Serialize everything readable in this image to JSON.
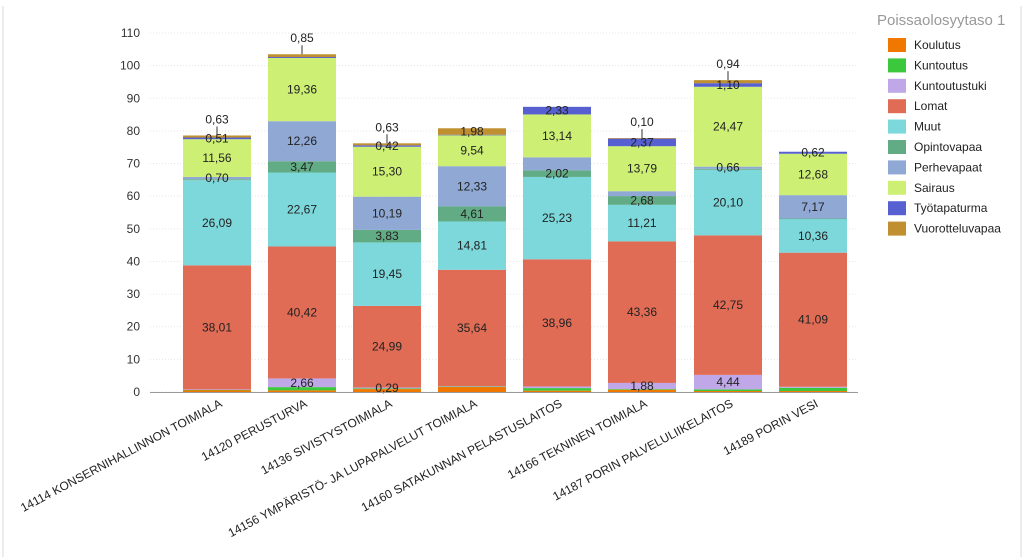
{
  "chart_data": {
    "type": "bar",
    "stacked": true,
    "categories": [
      "14114  KONSERNIHALLINNON TOIMIALA",
      "14120  PERUSTURVA",
      "14136  SIVISTYSTOIMIALA",
      "14156  YMPÄRISTÖ- JA LUPAPALVELUT TOIMIALA",
      "14160  SATAKUNNAN PELASTUSLAITOS",
      "14166  TEKNINEN TOIMIALA",
      "14187  PORIN PALVELULIIKELAITOS",
      "14189  PORIN VESI"
    ],
    "ylim": [
      0,
      110
    ],
    "yticks": [
      "0",
      "10",
      "20",
      "30",
      "40",
      "50",
      "60",
      "70",
      "80",
      "90",
      "100",
      "110"
    ],
    "grid": true,
    "legend_position": "right",
    "legend_title": "Poissaolosyytaso 1",
    "series": [
      {
        "name": "Koulutus",
        "color": "#F07800",
        "values": [
          0.6,
          0.5,
          0.9,
          1.6,
          0.4,
          0.7,
          0.3,
          0.3
        ],
        "labels": [
          "",
          "",
          "",
          "",
          "",
          "",
          "",
          ""
        ]
      },
      {
        "name": "Kuntoutus",
        "color": "#3CC83C",
        "values": [
          0.1,
          1.0,
          0.2,
          0.1,
          0.8,
          0.2,
          0.5,
          1.0
        ],
        "labels": [
          "",
          "",
          "",
          "",
          "",
          "",
          "",
          ""
        ]
      },
      {
        "name": "Kuntoutustuki",
        "color": "#C0A8E8",
        "values": [
          0.1,
          2.66,
          0.29,
          0.1,
          0.5,
          1.88,
          4.44,
          0.3
        ],
        "labels": [
          "",
          "2,66",
          "0,29",
          "",
          "",
          "1,88",
          "4,44",
          ""
        ]
      },
      {
        "name": "Lomat",
        "color": "#E06C55",
        "values": [
          38.01,
          40.42,
          24.99,
          35.64,
          38.96,
          43.36,
          42.75,
          41.09
        ],
        "labels": [
          "38,01",
          "40,42",
          "24,99",
          "35,64",
          "38,96",
          "43,36",
          "42,75",
          "41,09"
        ]
      },
      {
        "name": "Muut",
        "color": "#7DD8DC",
        "values": [
          26.09,
          22.67,
          19.45,
          14.81,
          25.23,
          11.21,
          20.1,
          10.36
        ],
        "labels": [
          "26,09",
          "22,67",
          "19,45",
          "14,81",
          "25,23",
          "11,21",
          "20,10",
          "10,36"
        ]
      },
      {
        "name": "Opintovapaa",
        "color": "#62AC85",
        "values": [
          0.3,
          3.47,
          3.83,
          4.61,
          2.02,
          2.68,
          0.3,
          0.1
        ],
        "labels": [
          "",
          "3,47",
          "3,83",
          "4,61",
          "2,02",
          "2,68",
          "",
          ""
        ]
      },
      {
        "name": "Perhevapaat",
        "color": "#8FA8D4",
        "values": [
          0.7,
          12.26,
          10.19,
          12.33,
          4.0,
          1.5,
          0.66,
          7.17
        ],
        "labels": [
          "0,70",
          "12,26",
          "10,19",
          "12,33",
          "",
          "",
          "0,66",
          "7,17"
        ]
      },
      {
        "name": "Sairaus",
        "color": "#CDF074",
        "values": [
          11.56,
          19.36,
          15.3,
          9.54,
          13.14,
          13.79,
          24.47,
          12.68
        ],
        "labels": [
          "11,56",
          "19,36",
          "15,30",
          "9,54",
          "13,14",
          "13,79",
          "24,47",
          "12,68"
        ]
      },
      {
        "name": "Työtapaturma",
        "color": "#5660D0",
        "values": [
          0.51,
          0.3,
          0.42,
          0.1,
          2.33,
          2.37,
          1.1,
          0.62
        ],
        "labels": [
          "0,51",
          "",
          "0,42",
          "",
          "2,33",
          "2,37",
          "1,10",
          "0,62"
        ]
      },
      {
        "name": "Vuorotteluvapaa",
        "color": "#C09030",
        "values": [
          0.63,
          0.85,
          0.63,
          1.98,
          0.0,
          0.1,
          0.94,
          0.0
        ],
        "labels": [
          "0,63",
          "0,85",
          "0,63",
          "1,98",
          "",
          "0,10",
          "0,94",
          ""
        ]
      }
    ]
  }
}
